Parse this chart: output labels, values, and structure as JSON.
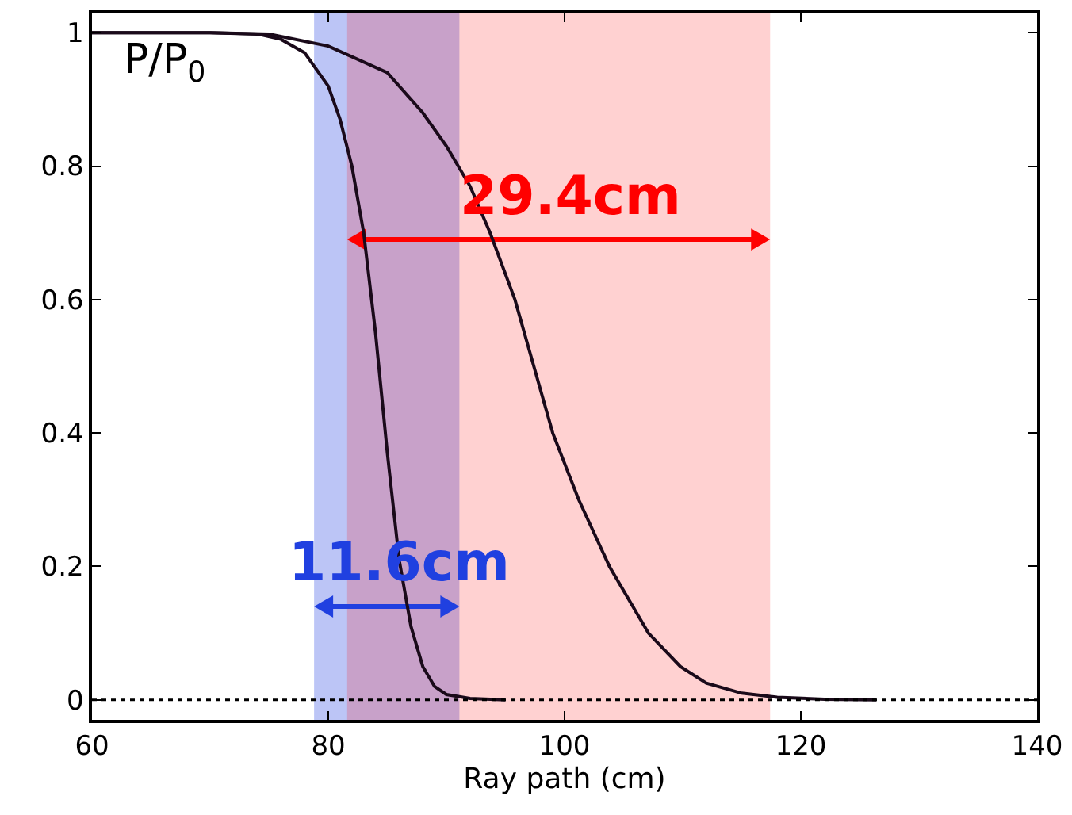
{
  "chart_data": {
    "type": "line",
    "xlabel": "Ray path (cm)",
    "xlim": [
      60,
      140
    ],
    "xticks": [
      60,
      80,
      100,
      120,
      140
    ],
    "ylim": [
      -0.03,
      1.03
    ],
    "yticks": [
      0,
      0.2,
      0.4,
      0.6,
      0.8,
      1
    ],
    "grid": false,
    "marker": "none",
    "line_style": "solid",
    "series": [
      {
        "color": "#1a0a1a",
        "x": [
          60,
          70,
          74,
          76,
          78,
          80,
          81,
          82,
          83,
          84,
          85,
          86,
          87,
          88,
          89,
          90,
          92,
          95
        ],
        "values": [
          1,
          1,
          0.998,
          0.99,
          0.97,
          0.92,
          0.87,
          0.8,
          0.7,
          0.55,
          0.37,
          0.21,
          0.11,
          0.05,
          0.02,
          0.008,
          0.002,
          0
        ]
      },
      {
        "color": "#1a0a1a",
        "x": [
          60,
          70,
          75,
          80,
          85,
          88,
          90,
          92,
          93.7,
          95.8,
          97.4,
          99,
          101.2,
          103.8,
          107.1,
          109.8,
          112,
          115,
          118,
          122,
          126.4
        ],
        "values": [
          1,
          1,
          0.998,
          0.98,
          0.94,
          0.88,
          0.83,
          0.77,
          0.7,
          0.6,
          0.5,
          0.4,
          0.3,
          0.2,
          0.1,
          0.05,
          0.025,
          0.01,
          0.004,
          0.001,
          0
        ]
      }
    ],
    "ref_lines": [
      {
        "axis": "y",
        "value": 0,
        "line_style": "dotted",
        "color": "#000000"
      }
    ],
    "bands": [
      {
        "axis": "x",
        "from": 78.8,
        "to": 91.1,
        "color": "#2040e0",
        "label": "11.6cm"
      },
      {
        "axis": "x",
        "from": 81.6,
        "to": 117.4,
        "color": "#ff0000",
        "label": "29.4cm"
      }
    ],
    "annotations": [
      "P/P$_{0}$"
    ]
  }
}
